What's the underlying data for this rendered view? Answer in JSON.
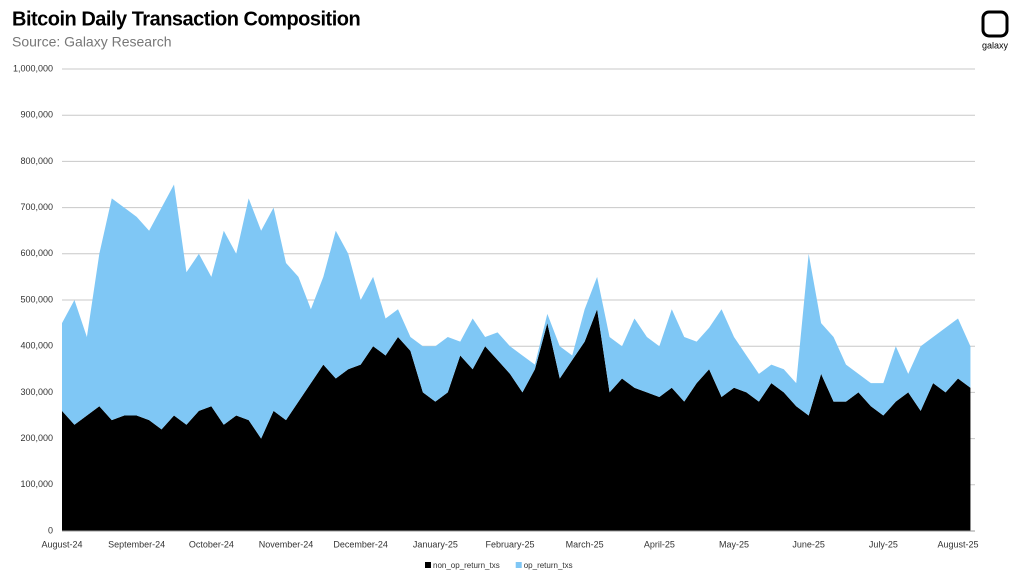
{
  "brand": "galaxy",
  "chart_data": {
    "type": "stacked_area",
    "title": "Bitcoin Daily Transaction Composition",
    "subtitle": "Source: Galaxy Research",
    "categories": [
      "August-24",
      null,
      null,
      null,
      null,
      null,
      "September-24",
      null,
      null,
      null,
      null,
      null,
      "October-24",
      null,
      null,
      null,
      null,
      null,
      "November-24",
      null,
      null,
      null,
      null,
      null,
      "December-24",
      null,
      null,
      null,
      null,
      null,
      "January-25",
      null,
      null,
      null,
      null,
      null,
      "February-25",
      null,
      null,
      null,
      null,
      null,
      "March-25",
      null,
      null,
      null,
      null,
      null,
      "April-25",
      null,
      null,
      null,
      null,
      null,
      "May-25",
      null,
      null,
      null,
      null,
      null,
      "June-25",
      null,
      null,
      null,
      null,
      null,
      "July-25",
      null,
      null,
      null,
      null,
      null,
      "August-25",
      null
    ],
    "series": [
      {
        "name": "non_op_return_txs",
        "color": "#000000",
        "values": [
          260000,
          230000,
          250000,
          270000,
          240000,
          250000,
          250000,
          240000,
          220000,
          250000,
          230000,
          260000,
          270000,
          230000,
          250000,
          240000,
          200000,
          260000,
          240000,
          280000,
          320000,
          360000,
          330000,
          350000,
          360000,
          400000,
          380000,
          420000,
          390000,
          300000,
          280000,
          300000,
          380000,
          350000,
          400000,
          370000,
          340000,
          300000,
          350000,
          450000,
          330000,
          370000,
          410000,
          480000,
          300000,
          330000,
          310000,
          300000,
          290000,
          310000,
          280000,
          320000,
          350000,
          290000,
          310000,
          300000,
          280000,
          320000,
          300000,
          270000,
          250000,
          340000,
          280000,
          280000,
          300000,
          270000,
          250000,
          280000,
          300000,
          260000,
          320000,
          300000,
          330000,
          310000
        ]
      },
      {
        "name": "op_return_txs",
        "color": "#7fc7f5",
        "values": [
          190000,
          270000,
          170000,
          330000,
          480000,
          450000,
          430000,
          410000,
          480000,
          500000,
          330000,
          340000,
          280000,
          420000,
          350000,
          480000,
          450000,
          440000,
          340000,
          270000,
          160000,
          190000,
          320000,
          250000,
          140000,
          150000,
          80000,
          60000,
          30000,
          100000,
          120000,
          120000,
          30000,
          110000,
          20000,
          60000,
          60000,
          80000,
          10000,
          20000,
          70000,
          10000,
          70000,
          70000,
          120000,
          70000,
          150000,
          120000,
          110000,
          170000,
          140000,
          90000,
          90000,
          190000,
          110000,
          80000,
          60000,
          40000,
          50000,
          50000,
          350000,
          110000,
          140000,
          80000,
          40000,
          50000,
          70000,
          120000,
          40000,
          140000,
          100000,
          140000,
          130000,
          90000
        ]
      }
    ],
    "ylim": [
      0,
      1000000
    ],
    "yticks": [
      0,
      {
        "value": 100000,
        "label": "100,000"
      },
      {
        "value": 200000,
        "label": "200,000"
      },
      {
        "value": 300000,
        "label": "300,000"
      },
      {
        "value": 400000,
        "label": "400,000"
      },
      {
        "value": 500000,
        "label": "500,000"
      },
      {
        "value": 600000,
        "label": "600,000"
      },
      {
        "value": 700000,
        "label": "700,000"
      },
      {
        "value": 800000,
        "label": "800,000"
      },
      {
        "value": 900000,
        "label": "900,000"
      },
      {
        "value": 1000000,
        "label": "1,000,000"
      }
    ],
    "grid": true,
    "legend": "bottom"
  }
}
